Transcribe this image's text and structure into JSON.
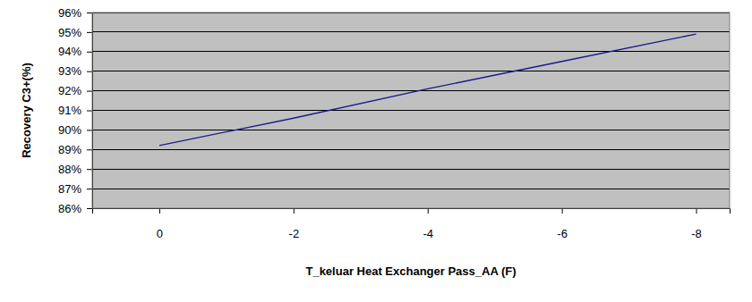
{
  "chart_data": {
    "type": "line",
    "x_label": "T_keluar Heat Exchanger Pass_AA (F)",
    "y_label": "Recovery C3+(%)",
    "x": [
      0,
      -2,
      -4,
      -6,
      -8
    ],
    "values": [
      89.2,
      90.6,
      92.1,
      93.5,
      94.9
    ],
    "color": "#1a1a8c",
    "xlim": [
      1,
      -8.5
    ],
    "xticks": [
      0,
      -2,
      -4,
      -6,
      -8
    ],
    "ylim": [
      86,
      96
    ],
    "yticks": [
      {
        "value": 86,
        "label": "86%"
      },
      {
        "value": 87,
        "label": "87%"
      },
      {
        "value": 88,
        "label": "88%"
      },
      {
        "value": 89,
        "label": "89%"
      },
      {
        "value": 90,
        "label": "90%"
      },
      {
        "value": 91,
        "label": "91%"
      },
      {
        "value": 92,
        "label": "92%"
      },
      {
        "value": 93,
        "label": "93%"
      },
      {
        "value": 94,
        "label": "94%"
      },
      {
        "value": 95,
        "label": "95%"
      },
      {
        "value": 96,
        "label": "96%"
      }
    ],
    "grid": true
  }
}
